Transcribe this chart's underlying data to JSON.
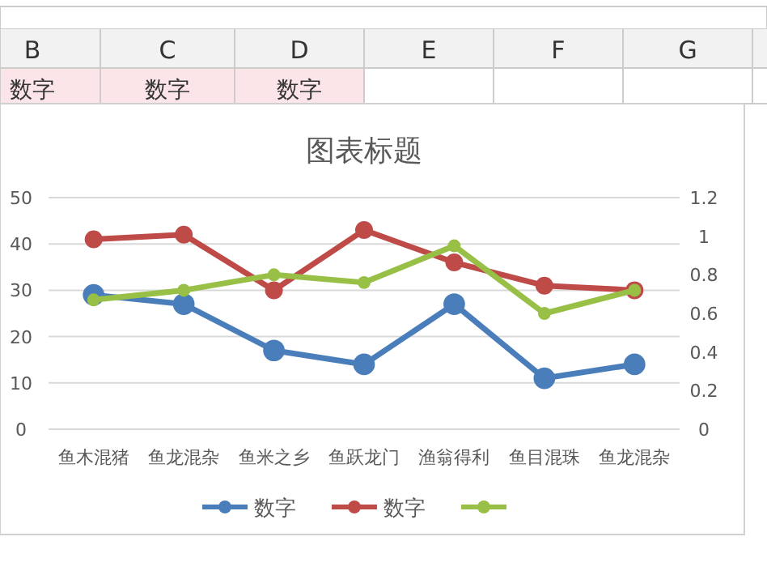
{
  "chart_data": {
    "type": "line",
    "title": "图表标题",
    "annotations": [
      "B",
      "C",
      "D",
      "E",
      "F",
      "G",
      "数字",
      "数字",
      "数字"
    ],
    "categories": [
      "鱼木混猪",
      "鱼龙混杂",
      "鱼米之乡",
      "鱼跃龙门",
      "渔翁得利",
      "鱼目混珠",
      "鱼龙混杂"
    ],
    "series": [
      {
        "name": "数字",
        "color": "#4a7ebb",
        "values": [
          29,
          27,
          17,
          14,
          27,
          11,
          14
        ]
      },
      {
        "name": "数字",
        "color": "#be4b48",
        "values": [
          41,
          42,
          30,
          43,
          36,
          31,
          30
        ]
      },
      {
        "color": "#98c046",
        "axis": "y2",
        "values": [
          0.67,
          0.72,
          0.8,
          0.76,
          0.95,
          0.6,
          0.72
        ]
      }
    ],
    "ylim": [
      0,
      50
    ],
    "yticks": [
      0,
      10,
      20,
      30,
      40,
      50
    ],
    "y2lim": [
      0,
      1.2
    ],
    "y2ticks": [
      0,
      0.2,
      0.4,
      0.6,
      0.8,
      1,
      1.2
    ],
    "grid": "y",
    "marker": "circle",
    "legend": "bottom"
  }
}
